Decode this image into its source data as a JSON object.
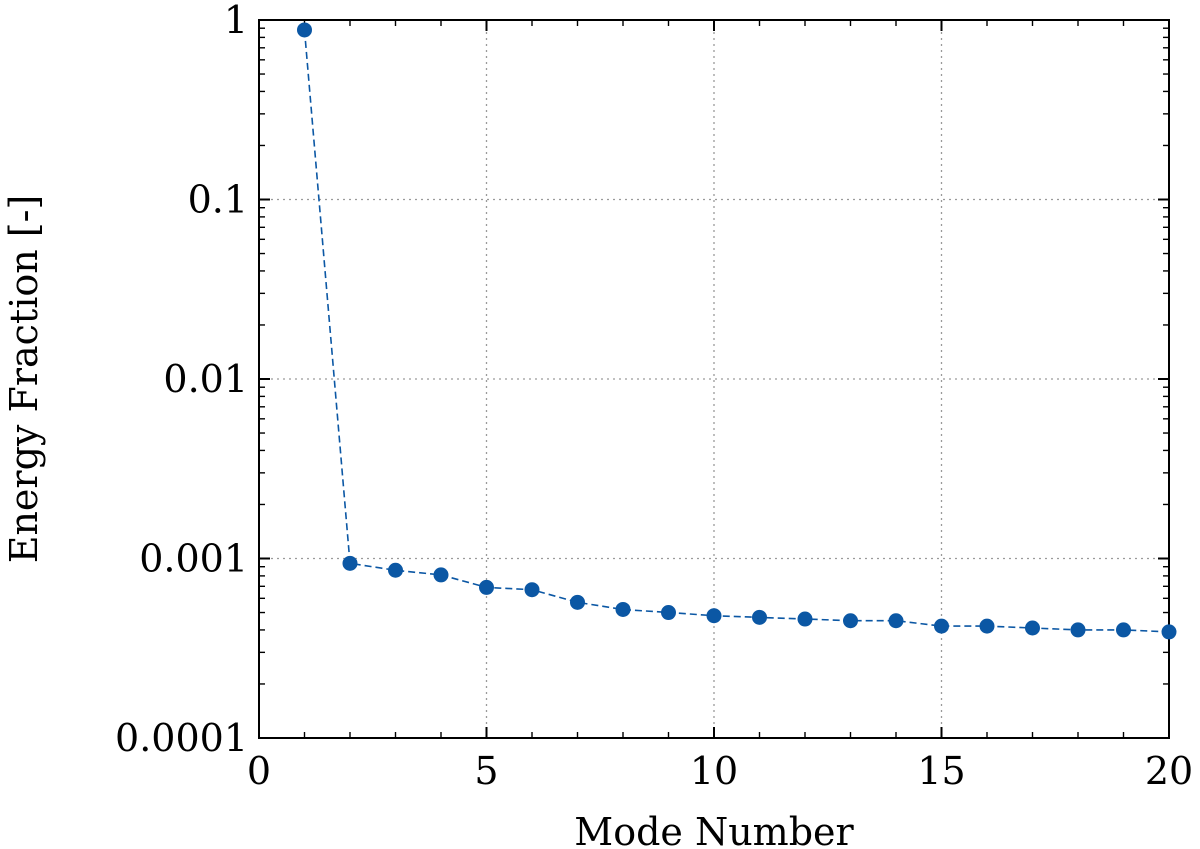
{
  "chart_data": {
    "type": "scatter",
    "xlabel": "Mode Number",
    "ylabel": "Energy Fraction [-]",
    "xlim": [
      0,
      20
    ],
    "ylim": [
      0.0001,
      1
    ],
    "yscale": "log",
    "grid": true,
    "x_ticks": [
      0,
      5,
      10,
      15,
      20
    ],
    "x_tick_labels": [
      "0",
      "5",
      "10",
      "15",
      "20"
    ],
    "y_ticks": [
      0.0001,
      0.001,
      0.01,
      0.1,
      1
    ],
    "y_tick_labels": [
      "0.0001",
      "0.001",
      "0.01",
      "0.1",
      "1"
    ],
    "series": [
      {
        "color": "#0b57a4",
        "line_style": "dashed",
        "marker": "circle",
        "x": [
          1,
          2,
          3,
          4,
          5,
          6,
          7,
          8,
          9,
          10,
          11,
          12,
          13,
          14,
          15,
          16,
          17,
          18,
          19,
          20
        ],
        "y": [
          0.88,
          0.00094,
          0.00086,
          0.00081,
          0.00069,
          0.00067,
          0.00057,
          0.00052,
          0.0005,
          0.00048,
          0.00047,
          0.00046,
          0.00045,
          0.00045,
          0.00042,
          0.00042,
          0.00041,
          0.0004,
          0.0004,
          0.00039
        ]
      }
    ]
  }
}
